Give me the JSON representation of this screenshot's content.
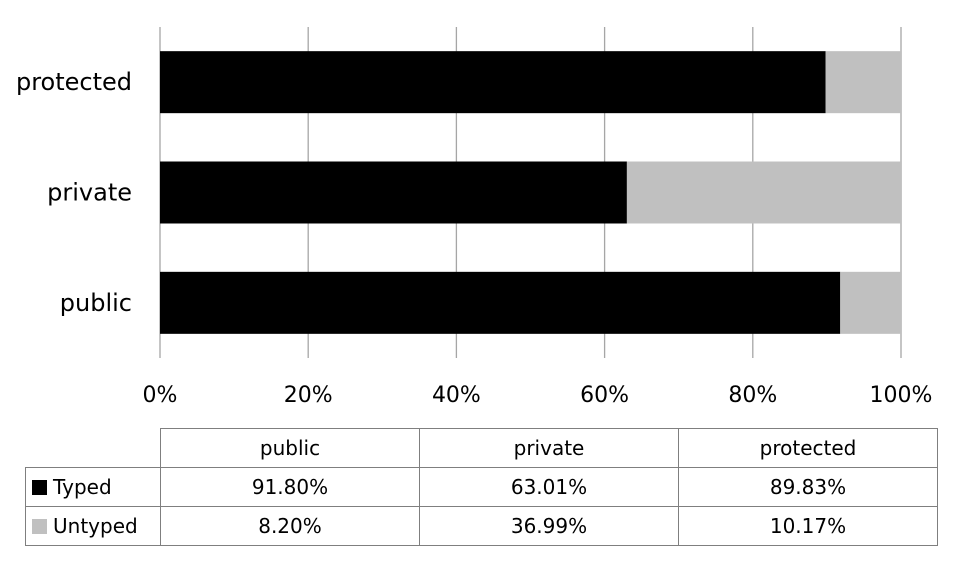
{
  "chart_data": {
    "type": "bar",
    "orientation": "horizontal",
    "stacked": "100%",
    "categories": [
      "public",
      "private",
      "protected"
    ],
    "series": [
      {
        "name": "Typed",
        "values": [
          91.8,
          63.01,
          89.83
        ],
        "labels": [
          "91.80%",
          "63.01%",
          "89.83%"
        ],
        "color": "#000000"
      },
      {
        "name": "Untyped",
        "values": [
          8.2,
          36.99,
          10.17
        ],
        "labels": [
          "8.20%",
          "36.99%",
          "10.17%"
        ],
        "color": "#c0c0c0"
      }
    ],
    "xlim": [
      0,
      100
    ],
    "x_ticks": [
      "0%",
      "20%",
      "40%",
      "60%",
      "80%",
      "100%"
    ],
    "grid": true,
    "legend": "data-table-below",
    "title": "",
    "xlabel": "",
    "ylabel": ""
  },
  "colors": {
    "gridline": "#a6a6a6",
    "axis": "#7f7f7f"
  }
}
